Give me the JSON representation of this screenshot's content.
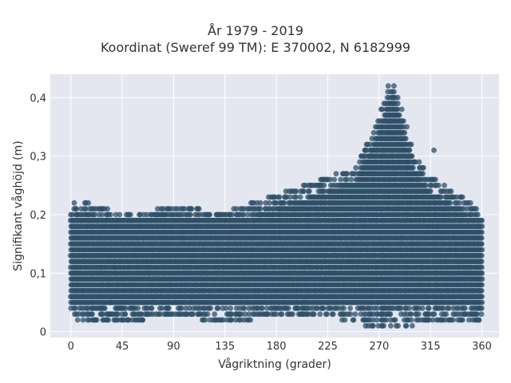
{
  "chart_data": {
    "type": "scatter",
    "title_line1": "År 1979 - 2019",
    "title_line2": "Koordinat (Sweref 99 TM): E 370002, N 6182999",
    "xlabel": "Vågriktning (grader)",
    "ylabel": "Signifikant våghöjd (m)",
    "xlim": [
      -18,
      375
    ],
    "ylim": [
      -0.01,
      0.44
    ],
    "x_ticks": [
      0,
      45,
      90,
      135,
      180,
      225,
      270,
      315,
      360
    ],
    "x_tick_labels": [
      "0",
      "45",
      "90",
      "135",
      "180",
      "225",
      "270",
      "315",
      "360"
    ],
    "y_ticks": [
      0,
      0.1,
      0.2,
      0.3,
      0.4
    ],
    "y_tick_labels": [
      "0",
      "0,1",
      "0,2",
      "0,3",
      "0,4"
    ],
    "grid": true,
    "colors": {
      "marker": "#2e5068",
      "plot_bg": "#e5e7f0",
      "grid": "#ffffff"
    },
    "density_envelope": [
      {
        "x": 0,
        "y_min": 0.03,
        "y_max": 0.2
      },
      {
        "x": 10,
        "y_min": 0.02,
        "y_max": 0.22
      },
      {
        "x": 20,
        "y_min": 0.02,
        "y_max": 0.21
      },
      {
        "x": 45,
        "y_min": 0.02,
        "y_max": 0.2
      },
      {
        "x": 90,
        "y_min": 0.03,
        "y_max": 0.21
      },
      {
        "x": 135,
        "y_min": 0.02,
        "y_max": 0.2
      },
      {
        "x": 180,
        "y_min": 0.03,
        "y_max": 0.23
      },
      {
        "x": 225,
        "y_min": 0.03,
        "y_max": 0.26
      },
      {
        "x": 250,
        "y_min": 0.02,
        "y_max": 0.28
      },
      {
        "x": 265,
        "y_min": 0.01,
        "y_max": 0.34
      },
      {
        "x": 280,
        "y_min": 0.01,
        "y_max": 0.42
      },
      {
        "x": 290,
        "y_min": 0.01,
        "y_max": 0.38
      },
      {
        "x": 300,
        "y_min": 0.02,
        "y_max": 0.3
      },
      {
        "x": 315,
        "y_min": 0.02,
        "y_max": 0.26
      },
      {
        "x": 340,
        "y_min": 0.02,
        "y_max": 0.23
      },
      {
        "x": 360,
        "y_min": 0.02,
        "y_max": 0.2
      }
    ],
    "notable_points": [
      {
        "x": 278,
        "y": 0.42
      },
      {
        "x": 283,
        "y": 0.42
      },
      {
        "x": 318,
        "y": 0.31
      },
      {
        "x": 3,
        "y": 0.22
      },
      {
        "x": 63,
        "y": 0.02
      },
      {
        "x": 137,
        "y": 0.02
      },
      {
        "x": 263,
        "y": 0.01
      },
      {
        "x": 299,
        "y": 0.01
      }
    ]
  }
}
